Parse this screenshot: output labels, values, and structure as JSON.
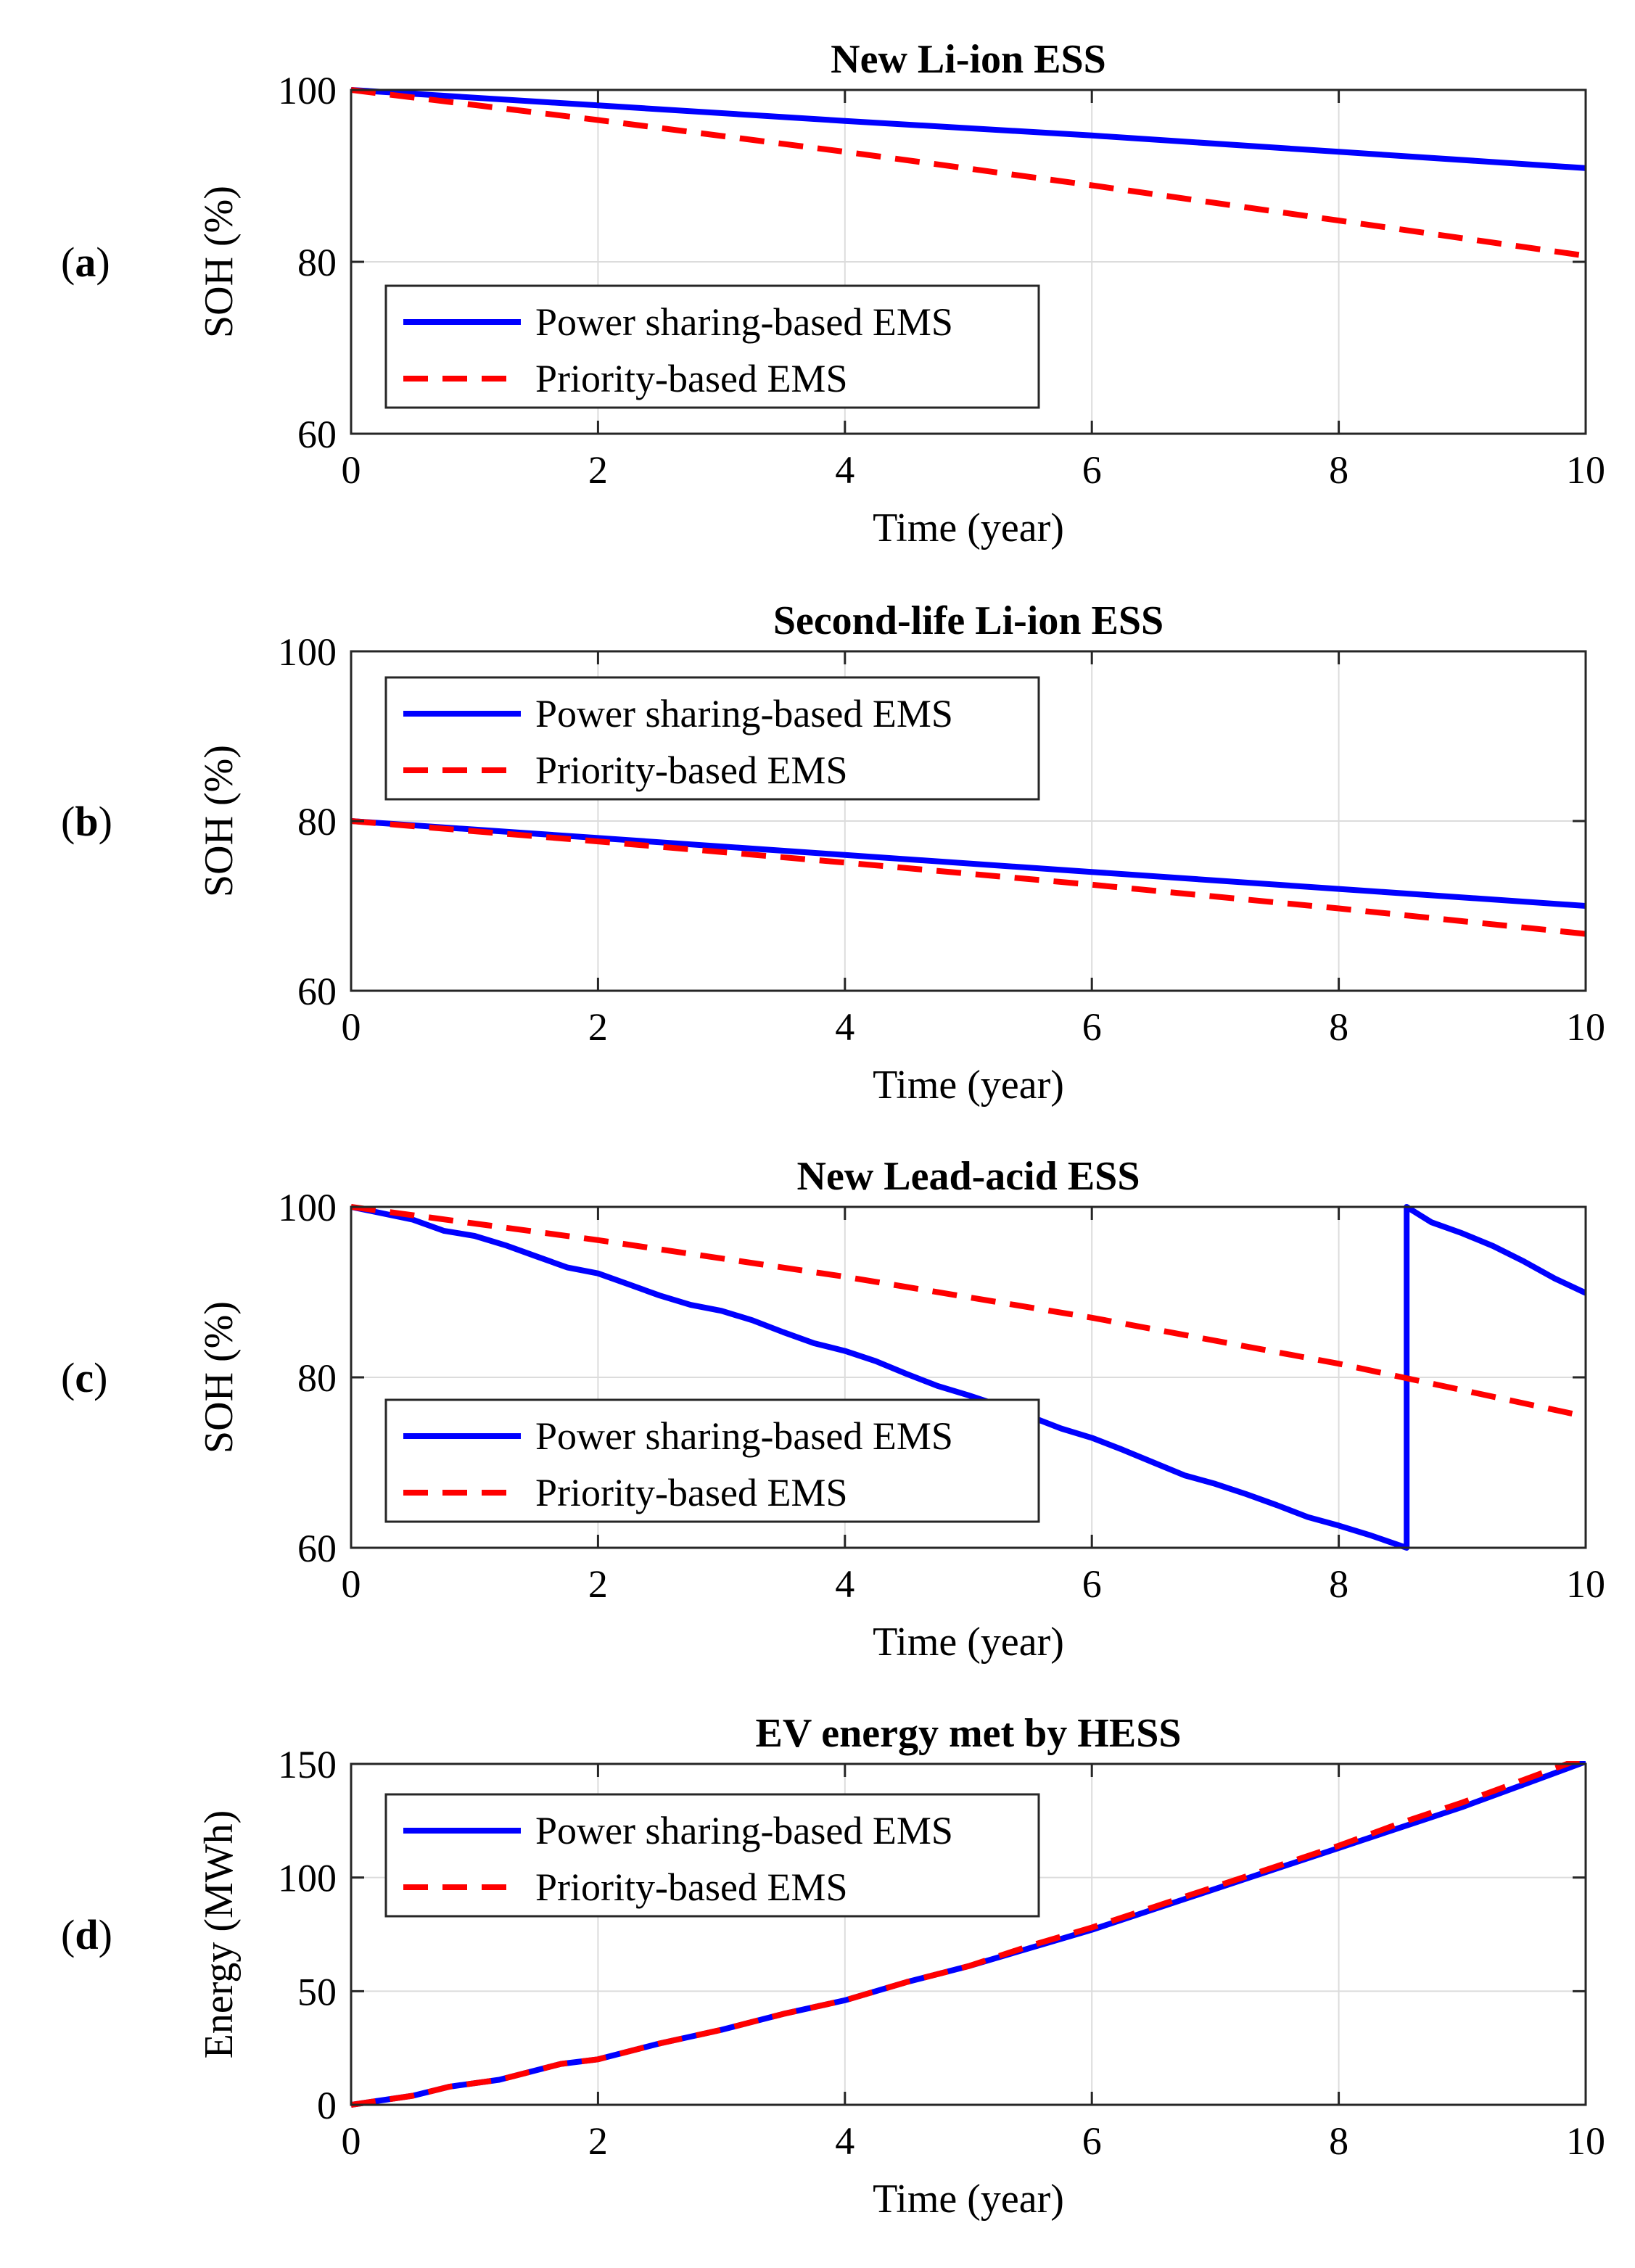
{
  "colors": {
    "power_sharing": "#0000ff",
    "priority": "#ff0000",
    "grid": "#dcdcdc",
    "axes": "#262626"
  },
  "chart_data": [
    {
      "id": "a",
      "panel_label": {
        "open": "(",
        "letter": "a",
        "close": ")"
      },
      "type": "line",
      "title": "New Li-ion ESS",
      "xlabel": "Time (year)",
      "ylabel": "SOH (%)",
      "xlim": [
        0,
        10
      ],
      "ylim": [
        60,
        100
      ],
      "xticks": [
        0,
        2,
        4,
        6,
        8,
        10
      ],
      "yticks": [
        60,
        80,
        100
      ],
      "grid": true,
      "legend_position": "bottom-left",
      "series": [
        {
          "name": "Power sharing-based EMS",
          "style": "solid",
          "color": "#0000ff",
          "x": [
            0,
            2,
            4,
            6,
            8,
            10
          ],
          "y": [
            100,
            98.2,
            96.4,
            94.7,
            92.8,
            90.9
          ]
        },
        {
          "name": "Priority-based EMS",
          "style": "dashed",
          "color": "#ff0000",
          "x": [
            0,
            2,
            4,
            6,
            8,
            10
          ],
          "y": [
            100,
            96.5,
            92.8,
            88.9,
            84.8,
            80.7
          ]
        }
      ]
    },
    {
      "id": "b",
      "panel_label": {
        "open": "(",
        "letter": "b",
        "close": ")"
      },
      "type": "line",
      "title": "Second-life Li-ion ESS",
      "xlabel": "Time (year)",
      "ylabel": "SOH (%)",
      "xlim": [
        0,
        10
      ],
      "ylim": [
        60,
        100
      ],
      "xticks": [
        0,
        2,
        4,
        6,
        8,
        10
      ],
      "yticks": [
        60,
        80,
        100
      ],
      "grid": true,
      "legend_position": "top-left",
      "series": [
        {
          "name": "Power sharing-based EMS",
          "style": "solid",
          "color": "#0000ff",
          "x": [
            0,
            2,
            4,
            6,
            8,
            10
          ],
          "y": [
            80,
            78.0,
            76.0,
            74.0,
            72.0,
            70.0
          ]
        },
        {
          "name": "Priority-based EMS",
          "style": "dashed",
          "color": "#ff0000",
          "x": [
            0,
            2,
            4,
            6,
            8,
            10
          ],
          "y": [
            80,
            77.6,
            75.1,
            72.5,
            69.7,
            66.7
          ]
        }
      ]
    },
    {
      "id": "c",
      "panel_label": {
        "open": "(",
        "letter": "c",
        "close": ")"
      },
      "type": "line",
      "title": "New Lead-acid ESS",
      "xlabel": "Time (year)",
      "ylabel": "SOH (%)",
      "xlim": [
        0,
        10
      ],
      "ylim": [
        60,
        100
      ],
      "xticks": [
        0,
        2,
        4,
        6,
        8,
        10
      ],
      "yticks": [
        60,
        80,
        100
      ],
      "grid": true,
      "legend_position": "bottom-left",
      "series": [
        {
          "name": "Power sharing-based EMS",
          "style": "solid",
          "color": "#0000ff",
          "x": [
            0,
            0.5,
            0.75,
            1.0,
            1.25,
            1.5,
            1.75,
            2.0,
            2.25,
            2.5,
            2.75,
            3.0,
            3.25,
            3.5,
            3.75,
            4.0,
            4.25,
            4.5,
            4.75,
            5.0,
            5.25,
            5.5,
            5.75,
            6.0,
            6.25,
            6.5,
            6.75,
            7.0,
            7.25,
            7.5,
            7.75,
            8.0,
            8.25,
            8.55,
            8.55,
            8.75,
            9.0,
            9.25,
            9.5,
            9.75,
            10.0
          ],
          "y": [
            100,
            98.5,
            97.2,
            96.6,
            95.5,
            94.2,
            92.9,
            92.2,
            90.9,
            89.6,
            88.5,
            87.8,
            86.7,
            85.3,
            84.0,
            83.1,
            81.9,
            80.4,
            79.0,
            77.9,
            76.7,
            75.4,
            74.0,
            72.9,
            71.5,
            70.0,
            68.5,
            67.5,
            66.3,
            65.0,
            63.6,
            62.6,
            61.5,
            60.0,
            100.0,
            98.2,
            96.9,
            95.4,
            93.6,
            91.6,
            89.9
          ]
        },
        {
          "name": "Priority-based EMS",
          "style": "dashed",
          "color": "#ff0000",
          "x": [
            0,
            2,
            4,
            6,
            8,
            10
          ],
          "y": [
            100,
            96.1,
            91.8,
            87.0,
            81.6,
            75.4
          ]
        }
      ]
    },
    {
      "id": "d",
      "panel_label": {
        "open": "(",
        "letter": "d",
        "close": ")"
      },
      "type": "line",
      "title": "EV energy met by HESS",
      "xlabel": "Time (year)",
      "ylabel": "Energy (MWh)",
      "xlim": [
        0,
        10
      ],
      "ylim": [
        0,
        150
      ],
      "xticks": [
        0,
        2,
        4,
        6,
        8,
        10
      ],
      "yticks": [
        0,
        50,
        100,
        150
      ],
      "grid": true,
      "legend_position": "top-left",
      "series": [
        {
          "name": "Power sharing-based EMS",
          "style": "solid",
          "color": "#0000ff",
          "x": [
            0,
            0.5,
            0.8,
            1.2,
            1.7,
            2.0,
            2.5,
            3.0,
            3.5,
            4.0,
            4.5,
            5.0,
            5.5,
            6.0,
            6.5,
            7.0,
            7.5,
            8.0,
            8.5,
            9.0,
            9.5,
            10.0
          ],
          "y": [
            0,
            4,
            8,
            11,
            18,
            20,
            27,
            33,
            40,
            46,
            54,
            61,
            69,
            77,
            86,
            95,
            104,
            113,
            122,
            131,
            141,
            151
          ]
        },
        {
          "name": "Priority-based EMS",
          "style": "dashed",
          "color": "#ff0000",
          "x": [
            0,
            0.5,
            0.8,
            1.2,
            1.7,
            2.0,
            2.5,
            3.0,
            3.5,
            4.0,
            4.5,
            5.0,
            5.5,
            6.0,
            6.5,
            7.0,
            7.5,
            8.0,
            8.5,
            9.0,
            9.5,
            10.0
          ],
          "y": [
            0,
            4,
            8,
            11,
            18,
            20,
            27,
            33,
            40,
            46,
            54,
            61,
            70,
            78,
            87,
            96,
            105,
            114,
            124,
            133,
            143,
            153
          ]
        }
      ]
    }
  ]
}
